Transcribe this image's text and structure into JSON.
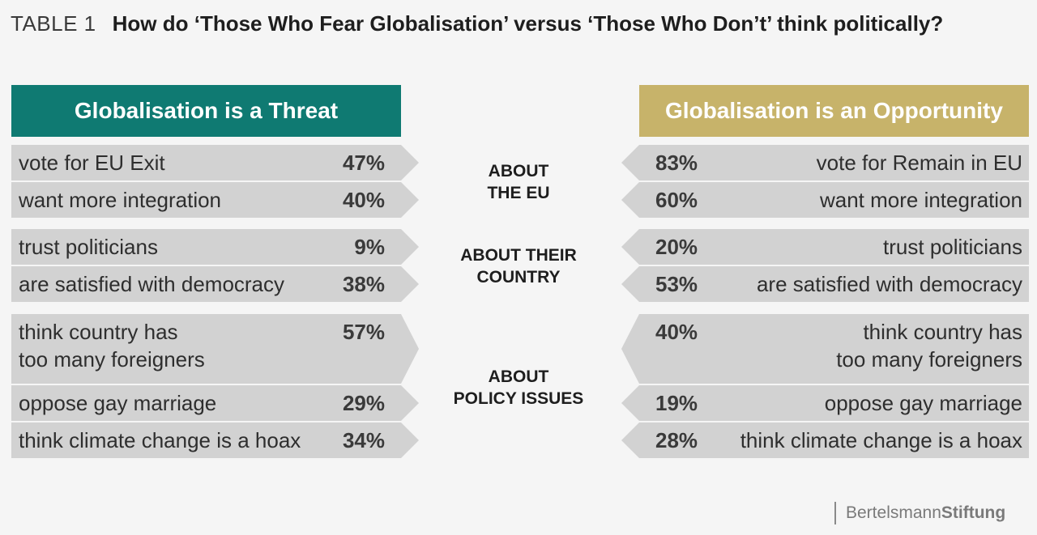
{
  "title": {
    "label": "TABLE 1",
    "text": "How do ‘Those Who Fear Globalisation’ versus ‘Those Who Don’t’ think politically?"
  },
  "colors": {
    "threat_header": "#0f7a72",
    "opportunity_header": "#c7b36a",
    "row_fill": "#d2d2d2",
    "background": "#f5f5f5"
  },
  "chart_data": {
    "type": "table",
    "columns": [
      "Globalisation is a Threat",
      "Globalisation is an Opportunity"
    ],
    "groups": [
      {
        "label": "ABOUT\nTHE EU",
        "rows": [
          {
            "threat_label": "vote for EU Exit",
            "threat_value": "47%",
            "opportunity_label": "vote for Remain in EU",
            "opportunity_value": "83%"
          },
          {
            "threat_label": "want more integration",
            "threat_value": "40%",
            "opportunity_label": "want more integration",
            "opportunity_value": "60%"
          }
        ]
      },
      {
        "label": "ABOUT THEIR\nCOUNTRY",
        "rows": [
          {
            "threat_label": "trust politicians",
            "threat_value": "9%",
            "opportunity_label": "trust politicians",
            "opportunity_value": "20%"
          },
          {
            "threat_label": "are satisfied with democracy",
            "threat_value": "38%",
            "opportunity_label": "are satisfied with democracy",
            "opportunity_value": "53%"
          }
        ]
      },
      {
        "label": "ABOUT\nPOLICY ISSUES",
        "rows": [
          {
            "threat_label": "think country has\ntoo many foreigners",
            "threat_value": "57%",
            "opportunity_label": "think country has\ntoo many foreigners",
            "opportunity_value": "40%"
          },
          {
            "threat_label": "oppose gay marriage",
            "threat_value": "29%",
            "opportunity_label": "oppose gay marriage",
            "opportunity_value": "19%"
          },
          {
            "threat_label": "think climate change is a hoax",
            "threat_value": "34%",
            "opportunity_label": "think climate change is a hoax",
            "opportunity_value": "28%"
          }
        ]
      }
    ]
  },
  "brand": {
    "light": "Bertelsmann",
    "bold": "Stiftung"
  }
}
